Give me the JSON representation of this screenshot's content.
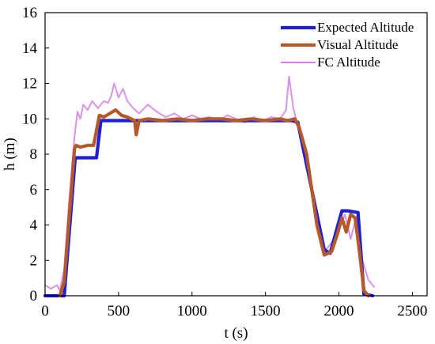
{
  "chart_data": {
    "type": "line",
    "xlabel": "t (s)",
    "ylabel": "h (m)",
    "xlim": [
      0,
      2600
    ],
    "ylim": [
      0,
      16
    ],
    "xticks": [
      0,
      500,
      1000,
      1500,
      2000,
      2500
    ],
    "yticks": [
      0,
      2,
      4,
      6,
      8,
      10,
      12,
      14,
      16
    ],
    "legend_position": "top-right",
    "grid": false,
    "series": [
      {
        "name": "Expected Altitude",
        "color": "#1f1fd6",
        "x": [
          0,
          130,
          205,
          215,
          350,
          380,
          1680,
          1720,
          1900,
          1940,
          2020,
          2060,
          2130,
          2170,
          2230
        ],
        "y": [
          0,
          0,
          7.8,
          7.8,
          7.8,
          9.9,
          9.9,
          9.8,
          2.6,
          2.4,
          4.8,
          4.8,
          4.7,
          0.1,
          0
        ]
      },
      {
        "name": "Visual Altitude",
        "color": "#b5592a",
        "x": [
          100,
          130,
          200,
          210,
          240,
          290,
          330,
          370,
          400,
          440,
          480,
          520,
          560,
          610,
          620,
          640,
          700,
          800,
          900,
          1000,
          1100,
          1200,
          1300,
          1400,
          1500,
          1600,
          1650,
          1700,
          1730,
          1780,
          1850,
          1900,
          1950,
          1990,
          2020,
          2050,
          2080,
          2110,
          2140,
          2170,
          2200
        ],
        "y": [
          0,
          0.8,
          8.3,
          8.5,
          8.4,
          8.5,
          8.5,
          10.2,
          10.1,
          10.3,
          10.5,
          10.2,
          10.1,
          9.9,
          9.1,
          9.9,
          10.0,
          9.9,
          10.0,
          9.9,
          10.0,
          10.0,
          9.9,
          10.0,
          9.9,
          10.0,
          9.9,
          10.0,
          9.5,
          8.0,
          4.0,
          2.3,
          2.5,
          3.5,
          4.4,
          3.6,
          4.6,
          4.4,
          2.5,
          0.3,
          0
        ]
      },
      {
        "name": "FC Altitude",
        "color": "#d57fe8",
        "x": [
          0,
          40,
          80,
          100,
          130,
          160,
          200,
          220,
          240,
          260,
          290,
          320,
          360,
          400,
          430,
          450,
          470,
          500,
          530,
          560,
          600,
          640,
          700,
          760,
          820,
          880,
          940,
          1000,
          1060,
          1120,
          1180,
          1240,
          1300,
          1360,
          1420,
          1480,
          1540,
          1600,
          1640,
          1660,
          1690,
          1720,
          1760,
          1800,
          1850,
          1900,
          1950,
          2000,
          2040,
          2080,
          2120,
          2160,
          2200,
          2240
        ],
        "y": [
          0.6,
          0.4,
          0.6,
          0.3,
          1.5,
          5.0,
          9.0,
          10.4,
          10.0,
          10.8,
          10.5,
          11.0,
          10.6,
          11.0,
          10.9,
          11.3,
          12.0,
          11.2,
          11.7,
          11.0,
          10.6,
          10.3,
          10.8,
          10.4,
          10.1,
          10.3,
          10.0,
          10.2,
          10.0,
          10.1,
          9.9,
          10.2,
          10.0,
          9.8,
          10.1,
          9.9,
          10.1,
          10.0,
          10.5,
          12.4,
          10.6,
          9.6,
          8.4,
          7.0,
          4.5,
          2.5,
          3.0,
          3.8,
          4.6,
          3.2,
          4.5,
          2.0,
          0.9,
          0.5
        ]
      }
    ]
  }
}
